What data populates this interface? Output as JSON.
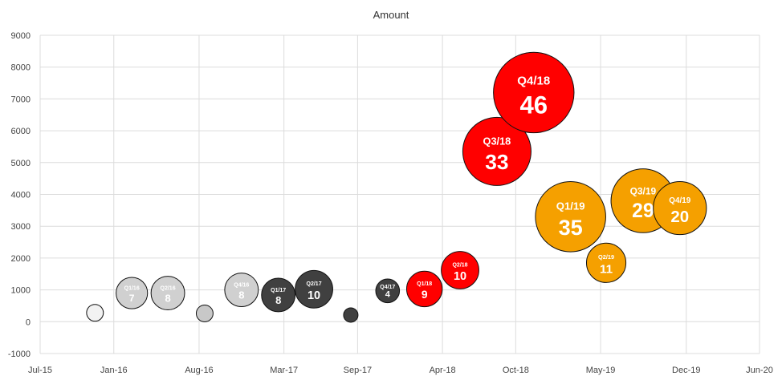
{
  "chart_data": {
    "type": "bubble",
    "title": "Amount",
    "xlabel": "",
    "ylabel": "",
    "x_axis": {
      "kind": "date",
      "min": "2015-07-01",
      "max": "2020-06-01",
      "ticks": [
        {
          "date": "2015-07-01",
          "label": "Jul-15"
        },
        {
          "date": "2016-01-01",
          "label": "Jan-16"
        },
        {
          "date": "2016-08-01",
          "label": "Aug-16"
        },
        {
          "date": "2017-03-01",
          "label": "Mar-17"
        },
        {
          "date": "2017-09-01",
          "label": "Sep-17"
        },
        {
          "date": "2018-04-01",
          "label": "Apr-18"
        },
        {
          "date": "2018-10-01",
          "label": "Oct-18"
        },
        {
          "date": "2019-05-01",
          "label": "May-19"
        },
        {
          "date": "2019-12-01",
          "label": "Dec-19"
        },
        {
          "date": "2020-06-01",
          "label": "Jun-20"
        }
      ]
    },
    "y_axis": {
      "min": -1000,
      "max": 9000,
      "ticks": [
        -1000,
        0,
        1000,
        2000,
        3000,
        4000,
        5000,
        6000,
        7000,
        8000,
        9000
      ]
    },
    "grid": true,
    "points": [
      {
        "x": "2015-11-15",
        "y": 280,
        "size": 2,
        "label": "",
        "value_label": "",
        "color": "#f2f2f2"
      },
      {
        "x": "2016-02-15",
        "y": 900,
        "size": 7,
        "label": "Q1/16",
        "value_label": "7",
        "color": "#d0d0d0"
      },
      {
        "x": "2016-05-15",
        "y": 900,
        "size": 8,
        "label": "Q2/16",
        "value_label": "8",
        "color": "#d0d0d0"
      },
      {
        "x": "2016-08-15",
        "y": 260,
        "size": 2,
        "label": "",
        "value_label": "",
        "color": "#c8c8c8"
      },
      {
        "x": "2016-11-15",
        "y": 1000,
        "size": 8,
        "label": "Q4/16",
        "value_label": "8",
        "color": "#d0d0d0"
      },
      {
        "x": "2017-02-15",
        "y": 840,
        "size": 8,
        "label": "Q1/17",
        "value_label": "8",
        "color": "#404040"
      },
      {
        "x": "2017-05-15",
        "y": 1020,
        "size": 10,
        "label": "Q2/17",
        "value_label": "10",
        "color": "#404040"
      },
      {
        "x": "2017-08-15",
        "y": 210,
        "size": 1,
        "label": "",
        "value_label": "",
        "color": "#404040"
      },
      {
        "x": "2017-11-15",
        "y": 970,
        "size": 4,
        "label": "Q4/17",
        "value_label": "4",
        "color": "#404040"
      },
      {
        "x": "2018-02-15",
        "y": 1030,
        "size": 9,
        "label": "Q1/18",
        "value_label": "9",
        "color": "#ff0000"
      },
      {
        "x": "2018-05-15",
        "y": 1620,
        "size": 10,
        "label": "Q2/18",
        "value_label": "10",
        "color": "#ff0000"
      },
      {
        "x": "2018-08-15",
        "y": 5350,
        "size": 33,
        "label": "Q3/18",
        "value_label": "33",
        "color": "#ff0000"
      },
      {
        "x": "2018-11-15",
        "y": 7200,
        "size": 46,
        "label": "Q4/18",
        "value_label": "46",
        "color": "#ff0000"
      },
      {
        "x": "2019-02-15",
        "y": 3300,
        "size": 35,
        "label": "Q1/19",
        "value_label": "35",
        "color": "#f5a000"
      },
      {
        "x": "2019-05-15",
        "y": 1850,
        "size": 11,
        "label": "Q2/19",
        "value_label": "11",
        "color": "#f5a000"
      },
      {
        "x": "2019-08-15",
        "y": 3800,
        "size": 29,
        "label": "Q3/19",
        "value_label": "29",
        "color": "#f5a000"
      },
      {
        "x": "2019-11-15",
        "y": 3570,
        "size": 20,
        "label": "Q4/19",
        "value_label": "20",
        "color": "#f5a000"
      }
    ]
  }
}
